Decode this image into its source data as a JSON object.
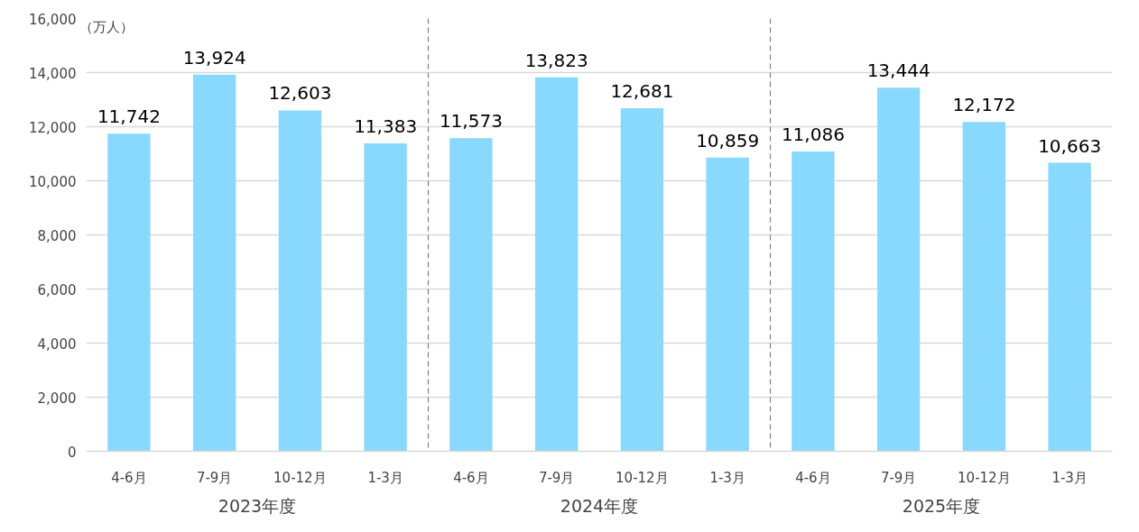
{
  "chart_data": {
    "type": "bar",
    "ylabel": "（万人）",
    "categories": [
      "4-6月",
      "7-9月",
      "10-12月",
      "1-3月",
      "4-6月",
      "7-9月",
      "10-12月",
      "1-3月",
      "4-6月",
      "7-9月",
      "10-12月",
      "1-3月"
    ],
    "values": [
      11742,
      13924,
      12603,
      11383,
      11573,
      13823,
      12681,
      10859,
      11086,
      13444,
      12172,
      10663
    ],
    "value_labels": [
      "11,742",
      "13,924",
      "12,603",
      "11,383",
      "11,573",
      "13,823",
      "12,681",
      "10,859",
      "11,086",
      "13,444",
      "12,172",
      "10,663"
    ],
    "color": "#89d8fd",
    "ylim": [
      0,
      16000
    ],
    "yticks": [
      {
        "value": 0,
        "label": "0"
      },
      {
        "value": 2000,
        "label": "2,000"
      },
      {
        "value": 4000,
        "label": "4,000"
      },
      {
        "value": 6000,
        "label": "6,000"
      },
      {
        "value": 8000,
        "label": "8,000"
      },
      {
        "value": 10000,
        "label": "10,000"
      },
      {
        "value": 12000,
        "label": "12,000"
      },
      {
        "value": 14000,
        "label": "14,000"
      },
      {
        "value": 16000,
        "label": "16,000"
      }
    ],
    "grid": "y",
    "annotations": [
      "2023年度",
      "2024年度",
      "2025年度"
    ]
  }
}
